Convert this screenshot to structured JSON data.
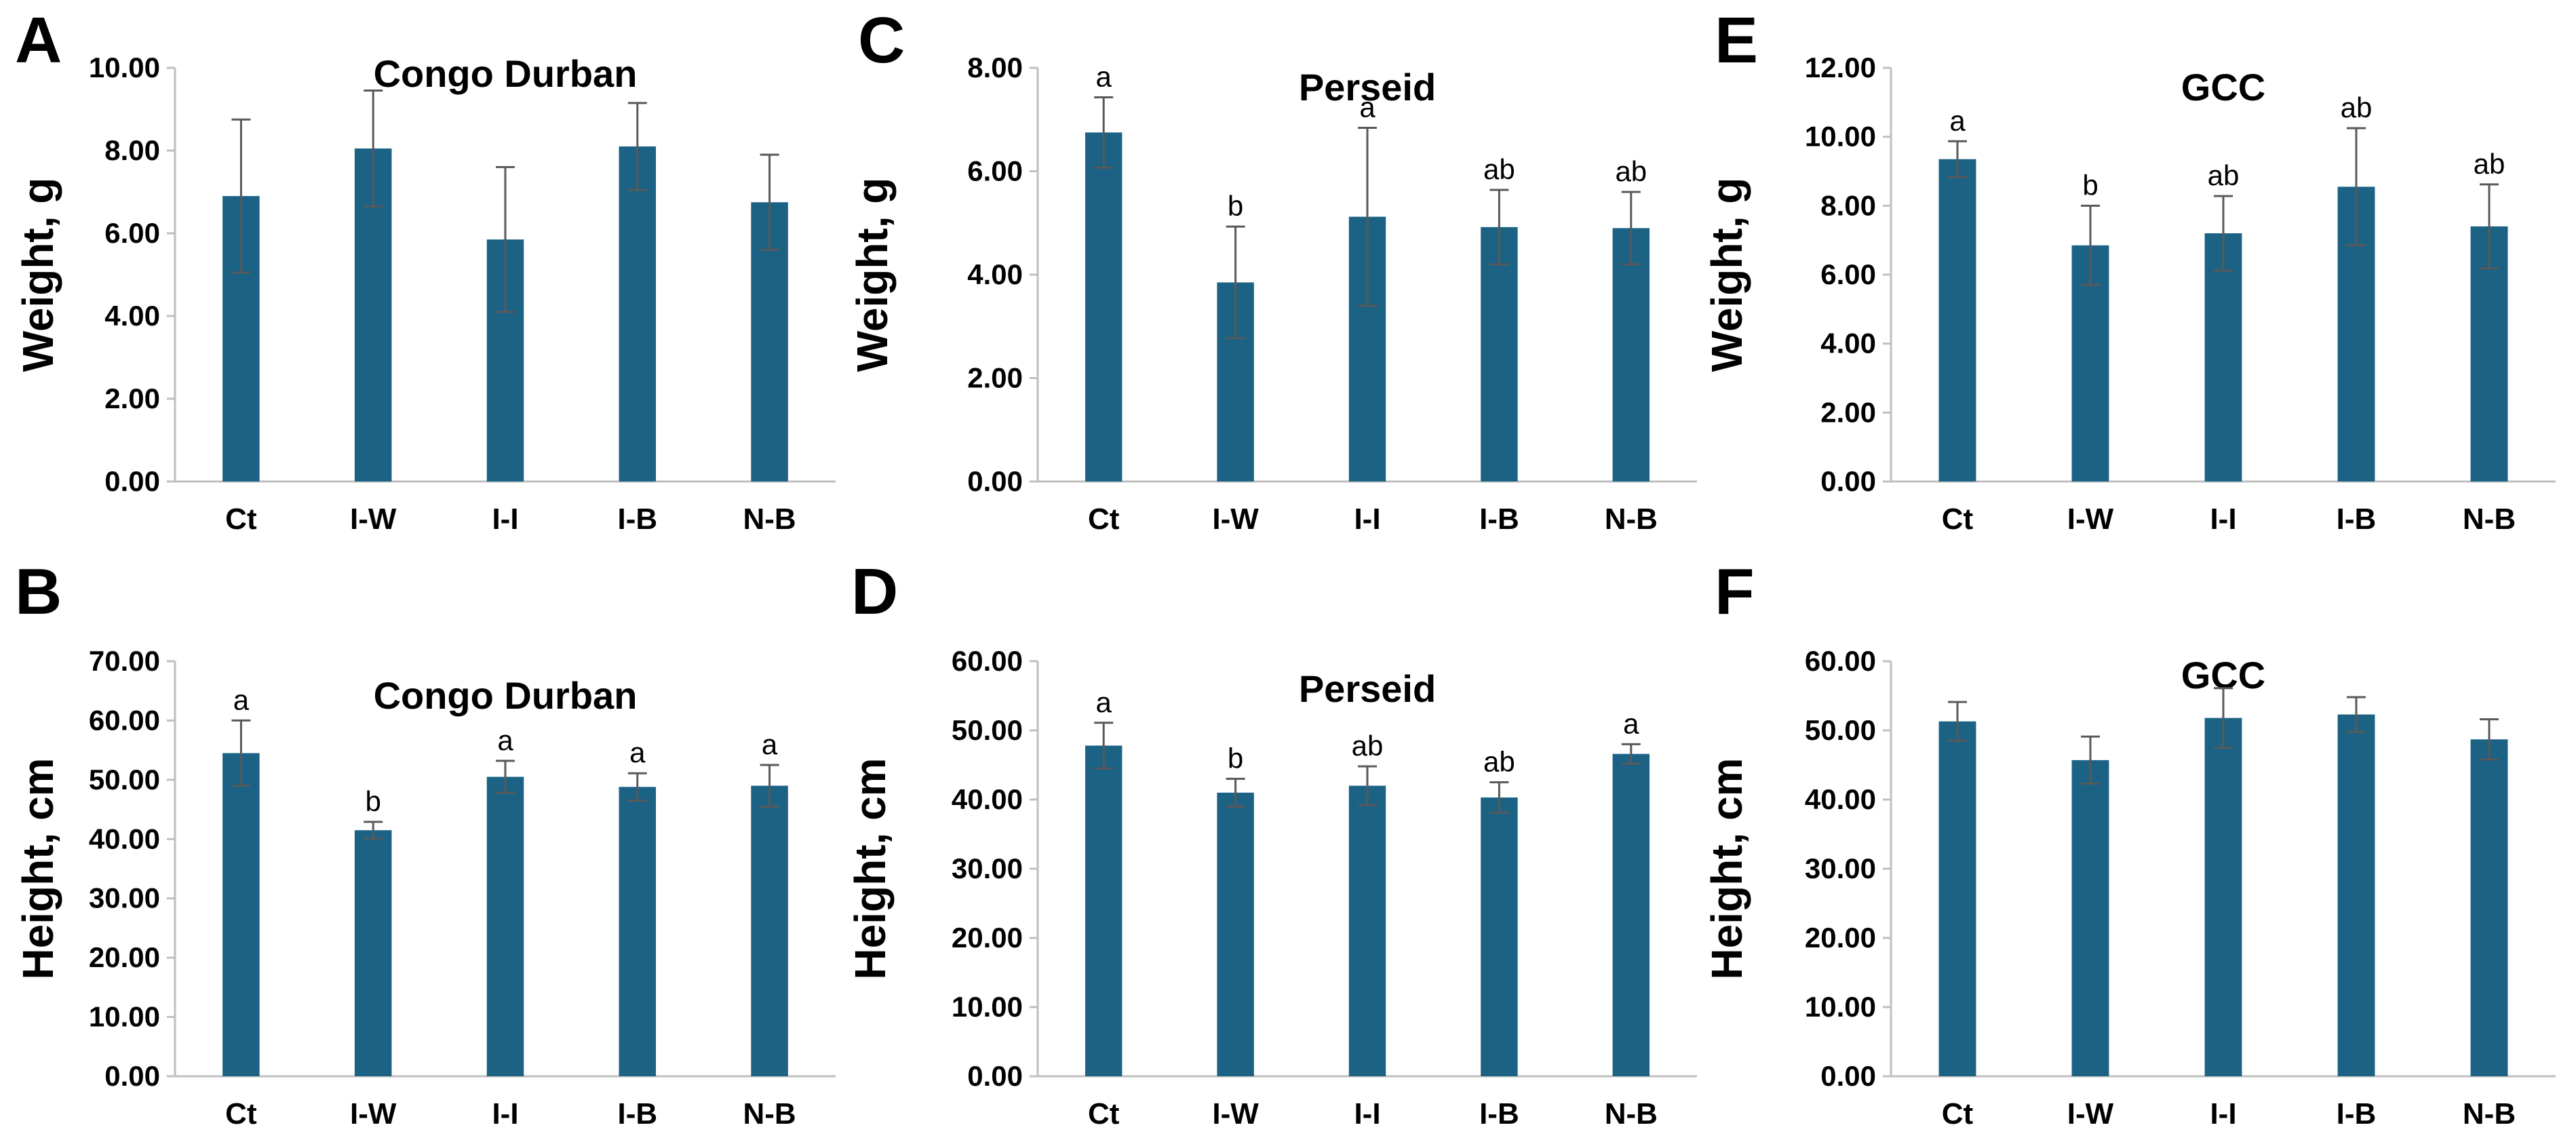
{
  "colors": {
    "bar": "#1b6285",
    "error": "#595959",
    "axis": "#bfbfbf"
  },
  "chart_data": [
    {
      "panel": "A",
      "type": "bar",
      "title": "Congo Durban",
      "xlabel": "",
      "ylabel": "Weight, g",
      "ylim": [
        0,
        10
      ],
      "yticks": [
        0,
        2,
        4,
        6,
        8,
        10
      ],
      "tick_format": "0.00",
      "categories": [
        "Ct",
        "I-W",
        "I-I",
        "I-B",
        "N-B"
      ],
      "values": [
        6.9,
        8.05,
        5.85,
        8.1,
        6.75
      ],
      "errors": [
        1.85,
        1.4,
        1.75,
        1.05,
        1.15
      ],
      "significance": [
        "",
        "",
        "",
        "",
        ""
      ]
    },
    {
      "panel": "B",
      "type": "bar",
      "title": "Congo Durban",
      "xlabel": "",
      "ylabel": "Height, cm",
      "ylim": [
        0,
        70
      ],
      "yticks": [
        0,
        10,
        20,
        30,
        40,
        50,
        60,
        70
      ],
      "tick_format": "0.00",
      "categories": [
        "Ct",
        "I-W",
        "I-I",
        "I-B",
        "N-B"
      ],
      "values": [
        54.5,
        41.5,
        50.5,
        48.8,
        49.0
      ],
      "errors": [
        5.5,
        1.4,
        2.7,
        2.3,
        3.5
      ],
      "significance": [
        "a",
        "b",
        "a",
        "a",
        "a"
      ]
    },
    {
      "panel": "C",
      "type": "bar",
      "title": "Perseid",
      "xlabel": "",
      "ylabel": "Weight, g",
      "ylim": [
        0,
        8
      ],
      "yticks": [
        0,
        2,
        4,
        6,
        8
      ],
      "tick_format": "0.00",
      "categories": [
        "Ct",
        "I-W",
        "I-I",
        "I-B",
        "N-B"
      ],
      "values": [
        6.75,
        3.85,
        5.12,
        4.92,
        4.9
      ],
      "errors": [
        0.68,
        1.08,
        1.72,
        0.72,
        0.7
      ],
      "significance": [
        "a",
        "b",
        "a",
        "ab",
        "ab"
      ]
    },
    {
      "panel": "D",
      "type": "bar",
      "title": "Perseid",
      "xlabel": "",
      "ylabel": "Height, cm",
      "ylim": [
        0,
        60
      ],
      "yticks": [
        0,
        10,
        20,
        30,
        40,
        50,
        60
      ],
      "tick_format": "0.00",
      "categories": [
        "Ct",
        "I-W",
        "I-I",
        "I-B",
        "N-B"
      ],
      "values": [
        47.8,
        41.0,
        42.0,
        40.3,
        46.6
      ],
      "errors": [
        3.3,
        2.0,
        2.8,
        2.2,
        1.4
      ],
      "significance": [
        "a",
        "b",
        "ab",
        "ab",
        "a"
      ]
    },
    {
      "panel": "E",
      "type": "bar",
      "title": "GCC",
      "xlabel": "",
      "ylabel": "Weight, g",
      "ylim": [
        0,
        12
      ],
      "yticks": [
        0,
        2,
        4,
        6,
        8,
        10,
        12
      ],
      "tick_format": "0.00",
      "categories": [
        "Ct",
        "I-W",
        "I-I",
        "I-B",
        "N-B"
      ],
      "values": [
        9.35,
        6.85,
        7.2,
        8.55,
        7.4
      ],
      "errors": [
        0.52,
        1.15,
        1.08,
        1.7,
        1.22
      ],
      "significance": [
        "a",
        "b",
        "ab",
        "ab",
        "ab"
      ]
    },
    {
      "panel": "F",
      "type": "bar",
      "title": "GCC",
      "xlabel": "",
      "ylabel": "Height, cm",
      "ylim": [
        0,
        60
      ],
      "yticks": [
        0,
        10,
        20,
        30,
        40,
        50,
        60
      ],
      "tick_format": "0.00",
      "categories": [
        "Ct",
        "I-W",
        "I-I",
        "I-B",
        "N-B"
      ],
      "values": [
        51.3,
        45.7,
        51.8,
        52.3,
        48.7
      ],
      "errors": [
        2.8,
        3.4,
        4.3,
        2.5,
        2.9
      ],
      "significance": [
        "",
        "",
        "",
        "",
        ""
      ]
    }
  ]
}
